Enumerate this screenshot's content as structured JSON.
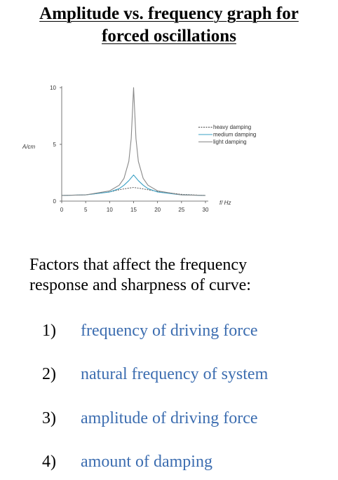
{
  "title_lines": [
    "Amplitude vs. frequency graph for",
    "forced oscillations"
  ],
  "factors_heading_lines": [
    "Factors that affect the frequency",
    "response and sharpness of curve:"
  ],
  "factors": [
    {
      "num": "1)",
      "text": "frequency of driving force"
    },
    {
      "num": "2)",
      "text": "natural frequency of system"
    },
    {
      "num": "3)",
      "text": "amplitude of driving force"
    },
    {
      "num": "4)",
      "text": "amount of damping"
    }
  ],
  "colors": {
    "factor_text": "#3c6db0",
    "heavy": "#444444",
    "medium": "#3aa0c4",
    "light": "#888888"
  },
  "chart_data": {
    "type": "line",
    "xlabel": "f/ Hz",
    "ylabel": "A/cm",
    "xlim": [
      0,
      30
    ],
    "ylim": [
      0,
      10
    ],
    "xticks": [
      0,
      5,
      10,
      15,
      20,
      25,
      30
    ],
    "yticks": [
      0,
      5,
      10
    ],
    "grid": false,
    "legend_position": "right",
    "resonance_frequency": 15,
    "series": [
      {
        "name": "heavy damping",
        "style": "dashed",
        "color": "#444444",
        "x": [
          0,
          5,
          10,
          12,
          14,
          15,
          16,
          18,
          20,
          25,
          30
        ],
        "y": [
          0.5,
          0.55,
          0.8,
          1.0,
          1.15,
          1.2,
          1.15,
          1.0,
          0.85,
          0.6,
          0.5
        ]
      },
      {
        "name": "medium damping",
        "style": "solid",
        "color": "#3aa0c4",
        "x": [
          0,
          5,
          10,
          12,
          13,
          14,
          15,
          16,
          17,
          18,
          20,
          25,
          30
        ],
        "y": [
          0.5,
          0.55,
          0.8,
          1.1,
          1.4,
          1.8,
          2.3,
          1.8,
          1.4,
          1.1,
          0.8,
          0.55,
          0.5
        ]
      },
      {
        "name": "light damping",
        "style": "solid",
        "color": "#888888",
        "x": [
          0,
          5,
          10,
          12,
          13,
          14,
          14.5,
          15,
          15.5,
          16,
          17,
          18,
          20,
          25,
          30
        ],
        "y": [
          0.5,
          0.55,
          0.9,
          1.4,
          2.0,
          3.5,
          5.5,
          10.0,
          5.5,
          3.5,
          2.0,
          1.4,
          0.9,
          0.55,
          0.5
        ]
      }
    ]
  }
}
